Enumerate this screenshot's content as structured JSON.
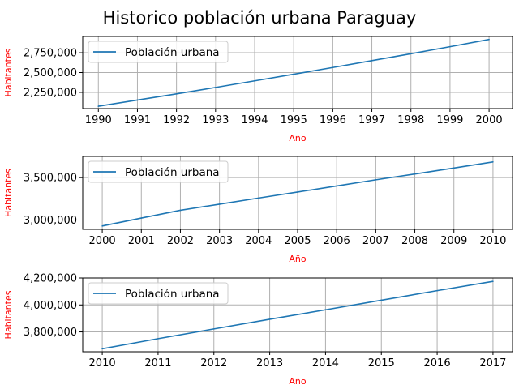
{
  "title": "Historico población urbana Paraguay",
  "label_color": "#ff0000",
  "line_color": "#1f77b4",
  "chart_data": [
    {
      "type": "line",
      "xlabel": "Año",
      "ylabel": "Habitantes",
      "legend": "top-left",
      "grid": true,
      "xlim": [
        1989.6,
        2000.6
      ],
      "ylim": [
        2045000,
        2955000
      ],
      "x_ticks": [
        1990,
        1991,
        1992,
        1993,
        1994,
        1995,
        1996,
        1997,
        1998,
        1999,
        2000
      ],
      "y_ticks": [
        2250000,
        2500000,
        2750000
      ],
      "y_tick_labels": [
        "2,250,000",
        "2,500,000",
        "2,750,000"
      ],
      "series": [
        {
          "name": "Población urbana",
          "x": [
            1990,
            1991,
            1992,
            1993,
            1994,
            1995,
            1996,
            1997,
            1998,
            1999,
            2000
          ],
          "values": [
            2075000,
            2153000,
            2231000,
            2312000,
            2395000,
            2479000,
            2564000,
            2650000,
            2737000,
            2826000,
            2917000
          ]
        }
      ]
    },
    {
      "type": "line",
      "xlabel": "Año",
      "ylabel": "Habitantes",
      "legend": "top-left",
      "grid": true,
      "xlim": [
        1999.5,
        2010.5
      ],
      "ylim": [
        2890000,
        3750000
      ],
      "x_ticks": [
        2000,
        2001,
        2002,
        2003,
        2004,
        2005,
        2006,
        2007,
        2008,
        2009,
        2010
      ],
      "y_ticks": [
        3000000,
        3500000
      ],
      "y_tick_labels": [
        "3,000,000",
        "3,500,000"
      ],
      "series": [
        {
          "name": "Población urbana",
          "x": [
            2000,
            2001,
            2002,
            2003,
            2004,
            2005,
            2006,
            2007,
            2008,
            2009,
            2010
          ],
          "values": [
            2930000,
            3023000,
            3115000,
            3187000,
            3259000,
            3330000,
            3402000,
            3474000,
            3543000,
            3613000,
            3685000
          ]
        }
      ]
    },
    {
      "type": "line",
      "xlabel": "Año",
      "ylabel": "Habitantes",
      "legend": "top-left",
      "grid": true,
      "xlim": [
        2009.65,
        2017.35
      ],
      "ylim": [
        3653000,
        4200000
      ],
      "x_ticks": [
        2010,
        2011,
        2012,
        2013,
        2014,
        2015,
        2016,
        2017
      ],
      "y_ticks": [
        3800000,
        4000000,
        4200000
      ],
      "y_tick_labels": [
        "3,800,000",
        "4,000,000",
        "4,200,000"
      ],
      "series": [
        {
          "name": "Población urbana",
          "x": [
            2010,
            2011,
            2012,
            2013,
            2014,
            2015,
            2016,
            2017
          ],
          "values": [
            3675000,
            3750000,
            3822000,
            3894000,
            3964000,
            4035000,
            4106000,
            4175000
          ]
        }
      ]
    }
  ]
}
